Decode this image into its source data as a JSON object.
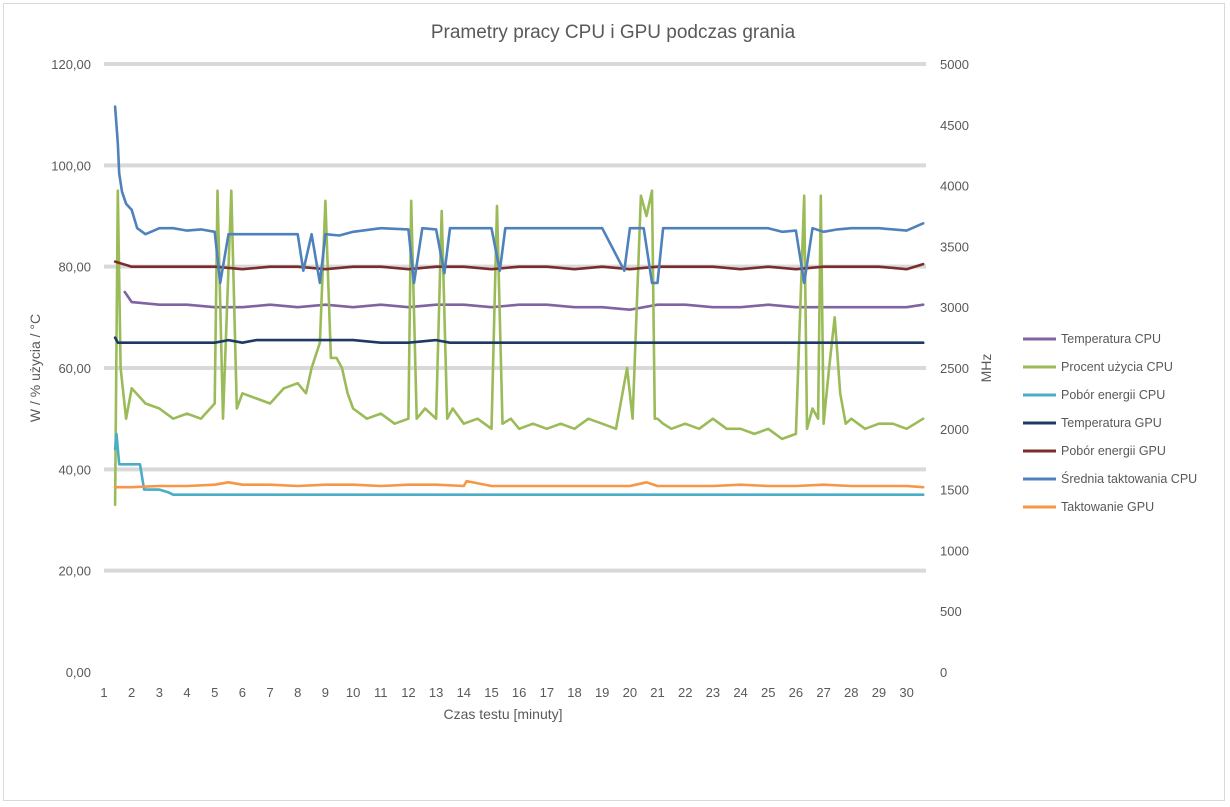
{
  "chart_data": {
    "type": "line",
    "title": "Prametry pracy CPU i GPU podczas grania",
    "xlabel": "Czas testu [minuty]",
    "ylabel": "W / % użycia / °C",
    "ylabel_right": "MHz",
    "x_ticks": [
      "1",
      "2",
      "3",
      "4",
      "5",
      "6",
      "7",
      "8",
      "9",
      "10",
      "11",
      "12",
      "13",
      "14",
      "15",
      "16",
      "17",
      "18",
      "19",
      "20",
      "21",
      "22",
      "23",
      "24",
      "25",
      "26",
      "27",
      "28",
      "29",
      "30"
    ],
    "x_range": [
      1,
      30.7
    ],
    "y_left_ticks": [
      "0,00",
      "20,00",
      "40,00",
      "60,00",
      "80,00",
      "100,00",
      "120,00"
    ],
    "y_left_range": [
      0,
      120
    ],
    "y_right_ticks": [
      "0",
      "500",
      "1000",
      "1500",
      "2000",
      "2500",
      "3000",
      "3500",
      "4000",
      "4500",
      "5000"
    ],
    "y_right_range": [
      0,
      5000
    ],
    "grid": true,
    "legend_position": "right",
    "series": [
      {
        "name": "Temperatura CPU",
        "axis": "left",
        "color": "#8064a2",
        "x": [
          1.75,
          2,
          3,
          4,
          5,
          6,
          7,
          8,
          9,
          10,
          11,
          12,
          13,
          14,
          15,
          16,
          17,
          18,
          19,
          20,
          21,
          22,
          23,
          24,
          25,
          26,
          27,
          28,
          29,
          30,
          30.6
        ],
        "y": [
          75,
          73,
          72.5,
          72.5,
          72,
          72,
          72.5,
          72,
          72.5,
          72,
          72.5,
          72,
          72.5,
          72.5,
          72,
          72.5,
          72.5,
          72,
          72,
          71.5,
          72.5,
          72.5,
          72,
          72,
          72.5,
          72,
          72,
          72,
          72,
          72,
          72.5
        ]
      },
      {
        "name": "Procent użycia CPU",
        "axis": "left",
        "color": "#9bbb59",
        "x": [
          1.4,
          1.5,
          1.6,
          1.8,
          2,
          2.5,
          3,
          3.5,
          4,
          4.5,
          5,
          5.1,
          5.3,
          5.6,
          5.8,
          6,
          6.5,
          7,
          7.5,
          8,
          8.3,
          8.5,
          8.8,
          9,
          9.2,
          9.4,
          9.6,
          9.8,
          10,
          10.5,
          11,
          11.5,
          12,
          12.1,
          12.3,
          12.6,
          13,
          13.2,
          13.4,
          13.6,
          14,
          14.5,
          15,
          15.2,
          15.4,
          15.7,
          16,
          16.5,
          17,
          17.5,
          18,
          18.5,
          19,
          19.5,
          19.9,
          20.1,
          20.4,
          20.6,
          20.8,
          20.9,
          21,
          21.2,
          21.5,
          22,
          22.5,
          23,
          23.5,
          24,
          24.5,
          25,
          25.5,
          26,
          26.3,
          26.4,
          26.6,
          26.8,
          26.9,
          27,
          27.2,
          27.4,
          27.6,
          27.8,
          28,
          28.5,
          29,
          29.5,
          30,
          30.6
        ],
        "y": [
          33,
          95,
          60,
          50,
          56,
          53,
          52,
          50,
          51,
          50,
          53,
          95,
          50,
          95,
          52,
          55,
          54,
          53,
          56,
          57,
          55,
          60,
          65,
          93,
          62,
          62,
          60,
          55,
          52,
          50,
          51,
          49,
          50,
          93,
          50,
          52,
          50,
          91,
          50,
          52,
          49,
          50,
          48,
          92,
          49,
          50,
          48,
          49,
          48,
          49,
          48,
          50,
          49,
          48,
          60,
          50,
          94,
          90,
          95,
          50,
          50,
          49,
          48,
          49,
          48,
          50,
          48,
          48,
          47,
          48,
          46,
          47,
          94,
          48,
          52,
          50,
          94,
          49,
          60,
          70,
          55,
          49,
          50,
          48,
          49,
          49,
          48,
          50
        ]
      },
      {
        "name": "Pobór energii CPU",
        "axis": "left",
        "color": "#4bacc6",
        "x": [
          1.4,
          1.45,
          1.55,
          2,
          2.3,
          2.45,
          3,
          3.3,
          3.5,
          4,
          5,
          6,
          7,
          8,
          9,
          10,
          11,
          12,
          13,
          14,
          15,
          16,
          17,
          18,
          19,
          20,
          21,
          22,
          23,
          24,
          25,
          26,
          27,
          28,
          29,
          30,
          30.6
        ],
        "y": [
          44,
          47,
          41,
          41,
          41,
          36,
          36,
          35.5,
          35,
          35,
          35,
          35,
          35,
          35,
          35,
          35,
          35,
          35,
          35,
          35,
          35,
          35,
          35,
          35,
          35,
          35,
          35,
          35,
          35,
          35,
          35,
          35,
          35,
          35,
          35,
          35,
          35
        ]
      },
      {
        "name": "Temperatura GPU",
        "axis": "left",
        "color": "#1f3864",
        "x": [
          1.4,
          1.5,
          2,
          3,
          4,
          5,
          5.5,
          6,
          6.5,
          7,
          8,
          9,
          10,
          11,
          12,
          13,
          13.5,
          14,
          15,
          16,
          17,
          18,
          19,
          20,
          21,
          22,
          23,
          24,
          25,
          26,
          27,
          28,
          29,
          30,
          30.6
        ],
        "y": [
          66,
          65,
          65,
          65,
          65,
          65,
          65.5,
          65,
          65.5,
          65.5,
          65.5,
          65.5,
          65.5,
          65,
          65,
          65.5,
          65,
          65,
          65,
          65,
          65,
          65,
          65,
          65,
          65,
          65,
          65,
          65,
          65,
          65,
          65,
          65,
          65,
          65,
          65
        ]
      },
      {
        "name": "Pobór energii GPU",
        "axis": "left",
        "color": "#7b2c2c",
        "x": [
          1.4,
          2,
          3,
          4,
          5,
          6,
          7,
          8,
          9,
          10,
          11,
          12,
          13,
          14,
          15,
          16,
          17,
          18,
          19,
          20,
          21,
          22,
          23,
          24,
          25,
          26,
          27,
          28,
          29,
          30,
          30.6
        ],
        "y": [
          81,
          80,
          80,
          80,
          80,
          79.5,
          80,
          80,
          79.5,
          80,
          80,
          79.5,
          80,
          80,
          79.5,
          80,
          80,
          79.5,
          80,
          79.5,
          80,
          80,
          80,
          79.5,
          80,
          79.5,
          80,
          80,
          80,
          79.5,
          80.5
        ]
      },
      {
        "name": "Średnia taktowania CPU",
        "axis": "right",
        "color": "#4f81bd",
        "x": [
          1.4,
          1.5,
          1.55,
          1.65,
          1.8,
          2,
          2.2,
          2.5,
          3,
          3.5,
          4,
          4.5,
          5,
          5.2,
          5.5,
          6,
          6.5,
          7,
          7.5,
          8,
          8.2,
          8.5,
          8.8,
          9,
          9.5,
          10,
          11,
          12,
          12.2,
          12.5,
          13,
          13.3,
          13.5,
          14,
          15,
          15.3,
          15.5,
          16,
          17,
          18,
          19,
          19.8,
          20,
          20.5,
          20.8,
          21,
          21.2,
          21.5,
          22,
          23,
          24,
          25,
          25.5,
          26,
          26.3,
          26.6,
          27,
          27.5,
          28,
          29,
          30,
          30.6
        ],
        "y": [
          4650,
          4350,
          4100,
          3950,
          3850,
          3800,
          3650,
          3600,
          3650,
          3650,
          3630,
          3640,
          3620,
          3200,
          3600,
          3600,
          3600,
          3600,
          3600,
          3600,
          3300,
          3600,
          3200,
          3600,
          3590,
          3620,
          3650,
          3640,
          3200,
          3650,
          3640,
          3280,
          3650,
          3650,
          3650,
          3300,
          3650,
          3650,
          3650,
          3650,
          3650,
          3300,
          3650,
          3650,
          3200,
          3200,
          3650,
          3650,
          3650,
          3650,
          3650,
          3650,
          3620,
          3630,
          3200,
          3650,
          3620,
          3640,
          3650,
          3650,
          3630,
          3690
        ]
      },
      {
        "name": "Taktowanie GPU",
        "axis": "right",
        "color": "#f79646",
        "x": [
          1.4,
          2,
          3,
          4,
          5,
          5.5,
          6,
          7,
          8,
          9,
          10,
          11,
          12,
          13,
          14,
          14.1,
          15,
          16,
          17,
          18,
          19,
          20,
          20.6,
          21,
          22,
          23,
          24,
          25,
          26,
          27,
          28,
          29,
          30,
          30.6
        ],
        "y": [
          1520,
          1520,
          1530,
          1530,
          1540,
          1560,
          1540,
          1540,
          1530,
          1540,
          1540,
          1530,
          1540,
          1540,
          1530,
          1570,
          1530,
          1530,
          1530,
          1530,
          1530,
          1530,
          1560,
          1530,
          1530,
          1530,
          1540,
          1530,
          1530,
          1540,
          1530,
          1530,
          1530,
          1520
        ]
      }
    ]
  }
}
